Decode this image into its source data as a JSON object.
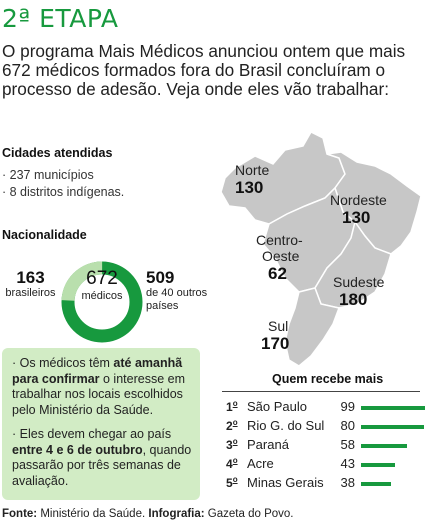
{
  "title": "2ª ETAPA",
  "lead": "O programa Mais Médicos anunciou ontem que mais 672 médicos formados fora do Brasil concluíram o processo de adesão. Veja onde eles vão trabalhar:",
  "cities": {
    "heading": "Cidades atendidas",
    "items": [
      "· 237 municípios",
      "· 8 distritos indígenas."
    ]
  },
  "nationality": {
    "heading": "Nacionalidade",
    "brazilian": {
      "value": "163",
      "label": "brasileiros"
    },
    "total": {
      "value": "672",
      "label": "médicos"
    },
    "foreign": {
      "value": "509",
      "label": "de 40 outros países"
    },
    "brazilian_share": 0.2426,
    "colors": {
      "brazilian": "#b9dfad",
      "foreign": "#17993e"
    }
  },
  "regions": [
    {
      "name": "Norte",
      "value": "130"
    },
    {
      "name": "Nordeste",
      "value": "130"
    },
    {
      "name": "Centro-Oeste",
      "name_lines": [
        "Centro-",
        "Oeste"
      ],
      "value": "62"
    },
    {
      "name": "Sudeste",
      "value": "180"
    },
    {
      "name": "Sul",
      "value": "170"
    }
  ],
  "note": {
    "p1_pre": "· Os médicos têm ",
    "p1_bold": "até amanhã para confirmar",
    "p1_post": " o interesse em trabalhar nos locais escolhidos pelo Ministério da Saúde.",
    "p2_pre": "· Eles devem chegar ao país ",
    "p2_bold": "entre 4 e 6 de outubro",
    "p2_post": ", quando passarão por três semanas de avaliação."
  },
  "ranking": {
    "heading": "Quem recebe mais",
    "rows": [
      {
        "pos": "1",
        "ord": "o",
        "state": "São Paulo",
        "value": 99
      },
      {
        "pos": "2",
        "ord": "o",
        "state": "Rio G. do Sul",
        "value": 80
      },
      {
        "pos": "3",
        "ord": "o",
        "state": "Paraná",
        "value": 58
      },
      {
        "pos": "4",
        "ord": "o",
        "state": "Acre",
        "value": 43
      },
      {
        "pos": "5",
        "ord": "o",
        "state": "Minas Gerais",
        "value": 38
      }
    ],
    "max": 99,
    "bar_color": "#17993e"
  },
  "source": {
    "label1": "Fonte:",
    "text1": " Ministério da Saúde. ",
    "label2": "Infografia:",
    "text2": " Gazeta do Povo."
  }
}
